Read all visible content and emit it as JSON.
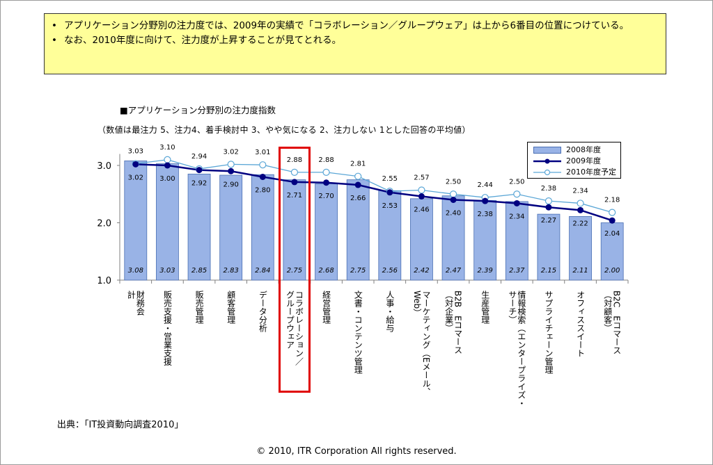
{
  "summary": {
    "items": [
      "アプリケーション分野別の注力度では、2009年の実績で「コラボレーション／グループウェア」は上から6番目の位置につけている。",
      "なお、2010年度に向けて、注力度が上昇することが見てとれる。"
    ]
  },
  "chart_data": {
    "type": "bar",
    "title": "■アプリケーション分野別の注力度指数",
    "note": "（数値は最注力 5、注力4、着手検討中 3、やや気になる 2、注力しない 1とした回答の平均値）",
    "categories": [
      "財務会計",
      "販売支援・営業支援",
      "販売管理",
      "顧客管理",
      "データ分析",
      "コラボレーション／グループウェア",
      "経営管理",
      "文書・コンテンツ管理",
      "人事・給与",
      "マーケティング（Eメール、Web）",
      "B2B Eコマース（対企業）",
      "生産管理",
      "情報検索（エンタープライズ・サーチ）",
      "サプライチェーン管理",
      "オフィススイート",
      "B2C Eコマース（対顧客）"
    ],
    "category_lines": [
      [
        "財務会",
        "計"
      ],
      [
        "販売支援・営業支援"
      ],
      [
        "販売管理"
      ],
      [
        "顧客管理"
      ],
      [
        "データ分析"
      ],
      [
        "コラボレーション／",
        "グループウェア"
      ],
      [
        "経営管理"
      ],
      [
        "文書・コンテンツ管理"
      ],
      [
        "人事・給与"
      ],
      [
        "マーケティング（Eメール、",
        "Web）"
      ],
      [
        "B2B　Eコマース",
        "（対企業）"
      ],
      [
        "生産管理"
      ],
      [
        "情報検索（エンタープライズ・",
        "サーチ）"
      ],
      [
        "サプライチェーン管理"
      ],
      [
        "オフィススイート"
      ],
      [
        "B2C　Eコマース",
        "（対顧客）"
      ]
    ],
    "series": [
      {
        "name": "2008年度",
        "kind": "bar",
        "color": "#99b3e6",
        "values": [
          3.08,
          3.03,
          2.85,
          2.83,
          2.84,
          2.75,
          2.68,
          2.75,
          2.56,
          2.42,
          2.47,
          2.39,
          2.37,
          2.15,
          2.11,
          2.0
        ],
        "labels": [
          "3.08",
          "3.03",
          "2.85",
          "2.83",
          "2.84",
          "2.75",
          "2.68",
          "2.75",
          "2.56",
          "2.42",
          "2.47",
          "2.39",
          "2.37",
          "2.15",
          "2.11",
          "2.00"
        ]
      },
      {
        "name": "2009年度",
        "kind": "line",
        "color": "#000080",
        "values": [
          3.02,
          3.0,
          2.92,
          2.9,
          2.8,
          2.71,
          2.7,
          2.66,
          2.53,
          2.46,
          2.4,
          2.38,
          2.34,
          2.27,
          2.22,
          2.04
        ],
        "labels": [
          "3.02",
          "3.00",
          "2.92",
          "2.90",
          "2.80",
          "2.71",
          "2.70",
          "2.66",
          "2.53",
          "2.46",
          "2.40",
          "2.38",
          "2.34",
          "2.27",
          "2.22",
          "2.04"
        ]
      },
      {
        "name": "2010年度予定",
        "kind": "line",
        "color": "#5aa6d6",
        "values": [
          3.03,
          3.1,
          2.94,
          3.02,
          3.01,
          2.88,
          2.88,
          2.81,
          2.55,
          2.57,
          2.5,
          2.44,
          2.5,
          2.38,
          2.34,
          2.18
        ],
        "labels": [
          "3.03",
          "3.10",
          "2.94",
          "3.02",
          "3.01",
          "2.88",
          "2.88",
          "2.81",
          "2.55",
          "2.57",
          "2.50",
          "2.44",
          "2.50",
          "2.38",
          "2.34",
          "2.18"
        ]
      }
    ],
    "yticks": [
      "1.0",
      "2.0",
      "3.0"
    ],
    "ylim": [
      1.0,
      3.2
    ],
    "legend_position": "top-right",
    "highlight_category": "コラボレーション／グループウェア"
  },
  "source": "出典：「IT投資動向調査2010」",
  "copyright": "© 2010, ITR Corporation  All rights reserved."
}
